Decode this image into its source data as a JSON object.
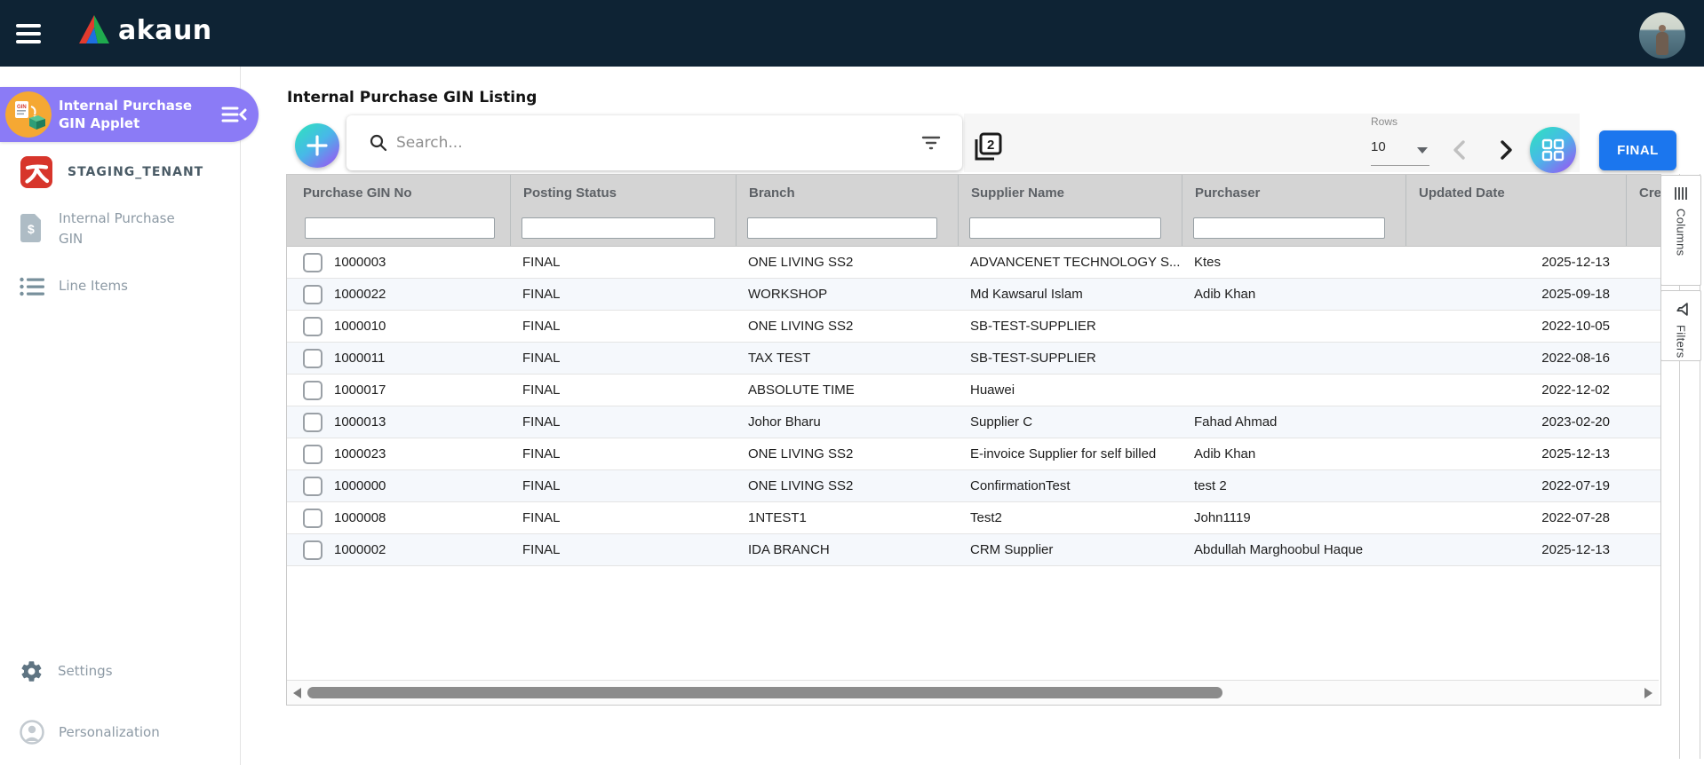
{
  "colors": {
    "topbar_bg": "#0e2334",
    "applet_purple": "#8b7bf6",
    "accent_blue": "#1b76ee",
    "gradient_teal": "#2fe0c0",
    "gradient_purple": "#9a55f3",
    "header_gray": "#d4d4d4",
    "row_alt": "#f5f8fc"
  },
  "topbar": {
    "brand": "akaun"
  },
  "sidebar": {
    "applet": {
      "title_line1": "Internal Purchase",
      "title_line2": "GIN Applet"
    },
    "tenant": "STAGING_TENANT",
    "items": [
      {
        "label": "Internal Purchase GIN"
      },
      {
        "label": "Line Items"
      }
    ],
    "footer": [
      {
        "label": "Settings"
      },
      {
        "label": "Personalization"
      }
    ]
  },
  "main": {
    "title": "Internal Purchase GIN Listing",
    "toolbar": {
      "search_placeholder": "Search...",
      "rows_label": "Rows",
      "rows_value": "10",
      "final_label": "FINAL"
    },
    "side_tabs": [
      {
        "label": "Columns"
      },
      {
        "label": "Filters"
      }
    ],
    "table": {
      "columns": [
        {
          "label": "Purchase GIN No",
          "key": "gin_no",
          "filter": true
        },
        {
          "label": "Posting Status",
          "key": "posting_status",
          "filter": true
        },
        {
          "label": "Branch",
          "key": "branch",
          "filter": true
        },
        {
          "label": "Supplier Name",
          "key": "supplier",
          "filter": true
        },
        {
          "label": "Purchaser",
          "key": "purchaser",
          "filter": true
        },
        {
          "label": "Updated Date",
          "key": "updated",
          "filter": false,
          "align": "right"
        },
        {
          "label": "Crea",
          "key": "",
          "filter": false
        }
      ],
      "rows": [
        {
          "gin_no": "1000003",
          "posting_status": "FINAL",
          "branch": "ONE LIVING SS2",
          "supplier": "ADVANCENET TECHNOLOGY S...",
          "purchaser": "Ktes",
          "updated": "2025-12-13"
        },
        {
          "gin_no": "1000022",
          "posting_status": "FINAL",
          "branch": "WORKSHOP",
          "supplier": "Md Kawsarul Islam",
          "purchaser": "Adib Khan",
          "updated": "2025-09-18"
        },
        {
          "gin_no": "1000010",
          "posting_status": "FINAL",
          "branch": "ONE LIVING SS2",
          "supplier": "SB-TEST-SUPPLIER",
          "purchaser": "",
          "updated": "2022-10-05"
        },
        {
          "gin_no": "1000011",
          "posting_status": "FINAL",
          "branch": "TAX TEST",
          "supplier": "SB-TEST-SUPPLIER",
          "purchaser": "",
          "updated": "2022-08-16"
        },
        {
          "gin_no": "1000017",
          "posting_status": "FINAL",
          "branch": "ABSOLUTE TIME",
          "supplier": "Huawei",
          "purchaser": "",
          "updated": "2022-12-02"
        },
        {
          "gin_no": "1000013",
          "posting_status": "FINAL",
          "branch": "Johor Bharu",
          "supplier": "Supplier C",
          "purchaser": "Fahad Ahmad",
          "updated": "2023-02-20"
        },
        {
          "gin_no": "1000023",
          "posting_status": "FINAL",
          "branch": "ONE LIVING SS2",
          "supplier": "E-invoice Supplier for self billed",
          "purchaser": "Adib Khan",
          "updated": "2025-12-13"
        },
        {
          "gin_no": "1000000",
          "posting_status": "FINAL",
          "branch": "ONE LIVING SS2",
          "supplier": "ConfirmationTest",
          "purchaser": "test 2",
          "updated": "2022-07-19"
        },
        {
          "gin_no": "1000008",
          "posting_status": "FINAL",
          "branch": "1NTEST1",
          "supplier": "Test2",
          "purchaser": "John1119",
          "updated": "2022-07-28"
        },
        {
          "gin_no": "1000002",
          "posting_status": "FINAL",
          "branch": "IDA BRANCH",
          "supplier": "CRM Supplier",
          "purchaser": "Abdullah Marghoobul Haque",
          "updated": "2025-12-13"
        }
      ]
    }
  }
}
